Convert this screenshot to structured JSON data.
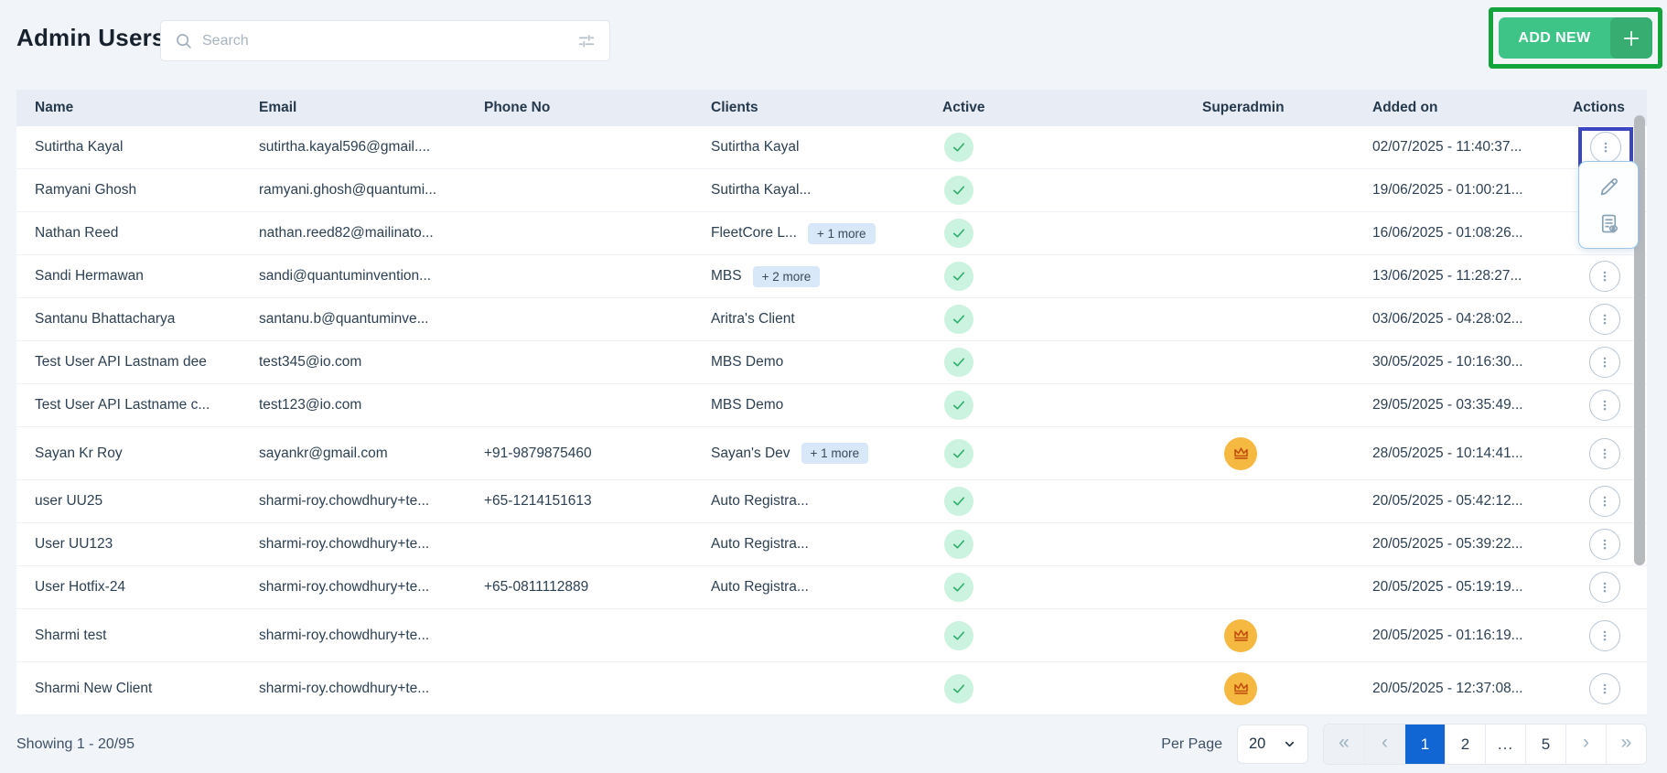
{
  "page": {
    "title": "Admin Users",
    "search": {
      "placeholder": "Search"
    },
    "add_button": {
      "label": "ADD NEW"
    }
  },
  "table": {
    "columns": [
      "Name",
      "Email",
      "Phone No",
      "Clients",
      "Active",
      "Superadmin",
      "Added on",
      "Actions"
    ],
    "rows": [
      {
        "name": "Sutirtha Kayal",
        "email": "sutirtha.kayal596@gmail....",
        "phone": "",
        "clients": "Sutirtha Kayal",
        "more": "",
        "active": true,
        "superadmin": false,
        "added": "02/07/2025 - 11:40:37...",
        "highlight": true
      },
      {
        "name": "Ramyani Ghosh",
        "email": "ramyani.ghosh@quantumi...",
        "phone": "",
        "clients": "Sutirtha Kayal...",
        "more": "",
        "active": true,
        "superadmin": false,
        "added": "19/06/2025 - 01:00:21...",
        "kebab": false
      },
      {
        "name": "Nathan Reed",
        "email": "nathan.reed82@mailinato...",
        "phone": "",
        "clients": "FleetCore L...",
        "more": "+ 1 more",
        "active": true,
        "superadmin": false,
        "added": "16/06/2025 - 01:08:26...",
        "kebab": false
      },
      {
        "name": "Sandi Hermawan",
        "email": "sandi@quantuminvention...",
        "phone": "",
        "clients": "MBS",
        "more": "+ 2 more",
        "active": true,
        "superadmin": false,
        "added": "13/06/2025 - 11:28:27..."
      },
      {
        "name": "Santanu Bhattacharya",
        "email": "santanu.b@quantuminve...",
        "phone": "",
        "clients": "Aritra's Client",
        "more": "",
        "active": true,
        "superadmin": false,
        "added": "03/06/2025 - 04:28:02..."
      },
      {
        "name": "Test User API Lastnam dee",
        "email": "test345@io.com",
        "phone": "",
        "clients": "MBS Demo",
        "more": "",
        "active": true,
        "superadmin": false,
        "added": "30/05/2025 - 10:16:30..."
      },
      {
        "name": "Test User API Lastname c...",
        "email": "test123@io.com",
        "phone": "",
        "clients": "MBS Demo",
        "more": "",
        "active": true,
        "superadmin": false,
        "added": "29/05/2025 - 03:35:49..."
      },
      {
        "name": "Sayan Kr Roy",
        "email": "sayankr@gmail.com",
        "phone": "+91-9879875460",
        "clients": "Sayan's Dev",
        "more": "+ 1 more",
        "active": true,
        "superadmin": true,
        "added": "28/05/2025 - 10:14:41..."
      },
      {
        "name": "user UU25",
        "email": "sharmi-roy.chowdhury+te...",
        "phone": "+65-1214151613",
        "clients": "Auto Registra...",
        "more": "",
        "active": true,
        "superadmin": false,
        "added": "20/05/2025 - 05:42:12..."
      },
      {
        "name": "User UU123",
        "email": "sharmi-roy.chowdhury+te...",
        "phone": "",
        "clients": "Auto Registra...",
        "more": "",
        "active": true,
        "superadmin": false,
        "added": "20/05/2025 - 05:39:22..."
      },
      {
        "name": "User Hotfix-24",
        "email": "sharmi-roy.chowdhury+te...",
        "phone": "+65-0811112889",
        "clients": "Auto Registra...",
        "more": "",
        "active": true,
        "superadmin": false,
        "added": "20/05/2025 - 05:19:19..."
      },
      {
        "name": "Sharmi test",
        "email": "sharmi-roy.chowdhury+te...",
        "phone": "",
        "clients": "",
        "more": "",
        "active": true,
        "superadmin": true,
        "added": "20/05/2025 - 01:16:19..."
      },
      {
        "name": "Sharmi New Client",
        "email": "sharmi-roy.chowdhury+te...",
        "phone": "",
        "clients": "",
        "more": "",
        "active": true,
        "superadmin": true,
        "added": "20/05/2025 - 12:37:08..."
      }
    ],
    "action_menu": {
      "open": true,
      "items": [
        "edit",
        "view-log"
      ]
    }
  },
  "footer": {
    "showing": "Showing 1 - 20/95",
    "per_page_label": "Per Page",
    "per_page_value": "20",
    "pagination": [
      {
        "label": "«",
        "name": "first-page-button",
        "nav": true,
        "disabled": true
      },
      {
        "label": "‹",
        "name": "prev-page-button",
        "nav": true,
        "disabled": true
      },
      {
        "label": "1",
        "name": "page-1-button",
        "active": true
      },
      {
        "label": "2",
        "name": "page-2-button"
      },
      {
        "label": "...",
        "name": "page-ellipsis",
        "ellipsis": true
      },
      {
        "label": "5",
        "name": "page-5-button"
      },
      {
        "label": "›",
        "name": "next-page-button",
        "nav": true
      },
      {
        "label": "»",
        "name": "last-page-button",
        "nav": true
      }
    ]
  },
  "colors": {
    "add_button_green": "#3ec487",
    "add_button_plus_green": "#37ad72",
    "highlight_green": "#12a53b",
    "highlight_blue": "#3b46c1",
    "active_page_blue": "#1266d3",
    "check_green": "#2fae6d",
    "check_bg": "#cbf3df",
    "crown_bg": "#f5b840",
    "crown_orange": "#c1500f",
    "chip_bg": "#d9e8f8",
    "header_band": "#e8edf5"
  }
}
